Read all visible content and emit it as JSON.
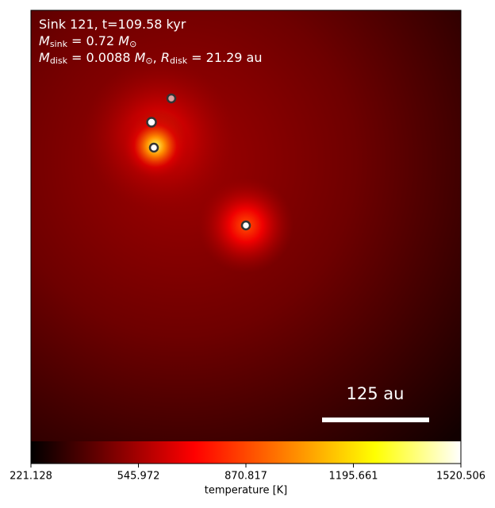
{
  "chart_data": {
    "type": "heatmap",
    "title_lines": [
      [
        "Sink 121, t=109.58 kyr"
      ],
      [
        "M",
        "sink",
        " = 0.72 ",
        "M",
        "⊙"
      ],
      [
        "M",
        "disk",
        " = 0.0088 ",
        "M",
        "⊙",
        ", ",
        "R",
        "disk",
        " = 21.29 au"
      ]
    ],
    "scale_bar_label": "125 au",
    "colorbar_label": "temperature [K]",
    "clim": [
      221.128,
      1520.506
    ],
    "cticks": [
      221.128,
      545.972,
      870.817,
      1195.661,
      1520.506
    ]
  }
}
